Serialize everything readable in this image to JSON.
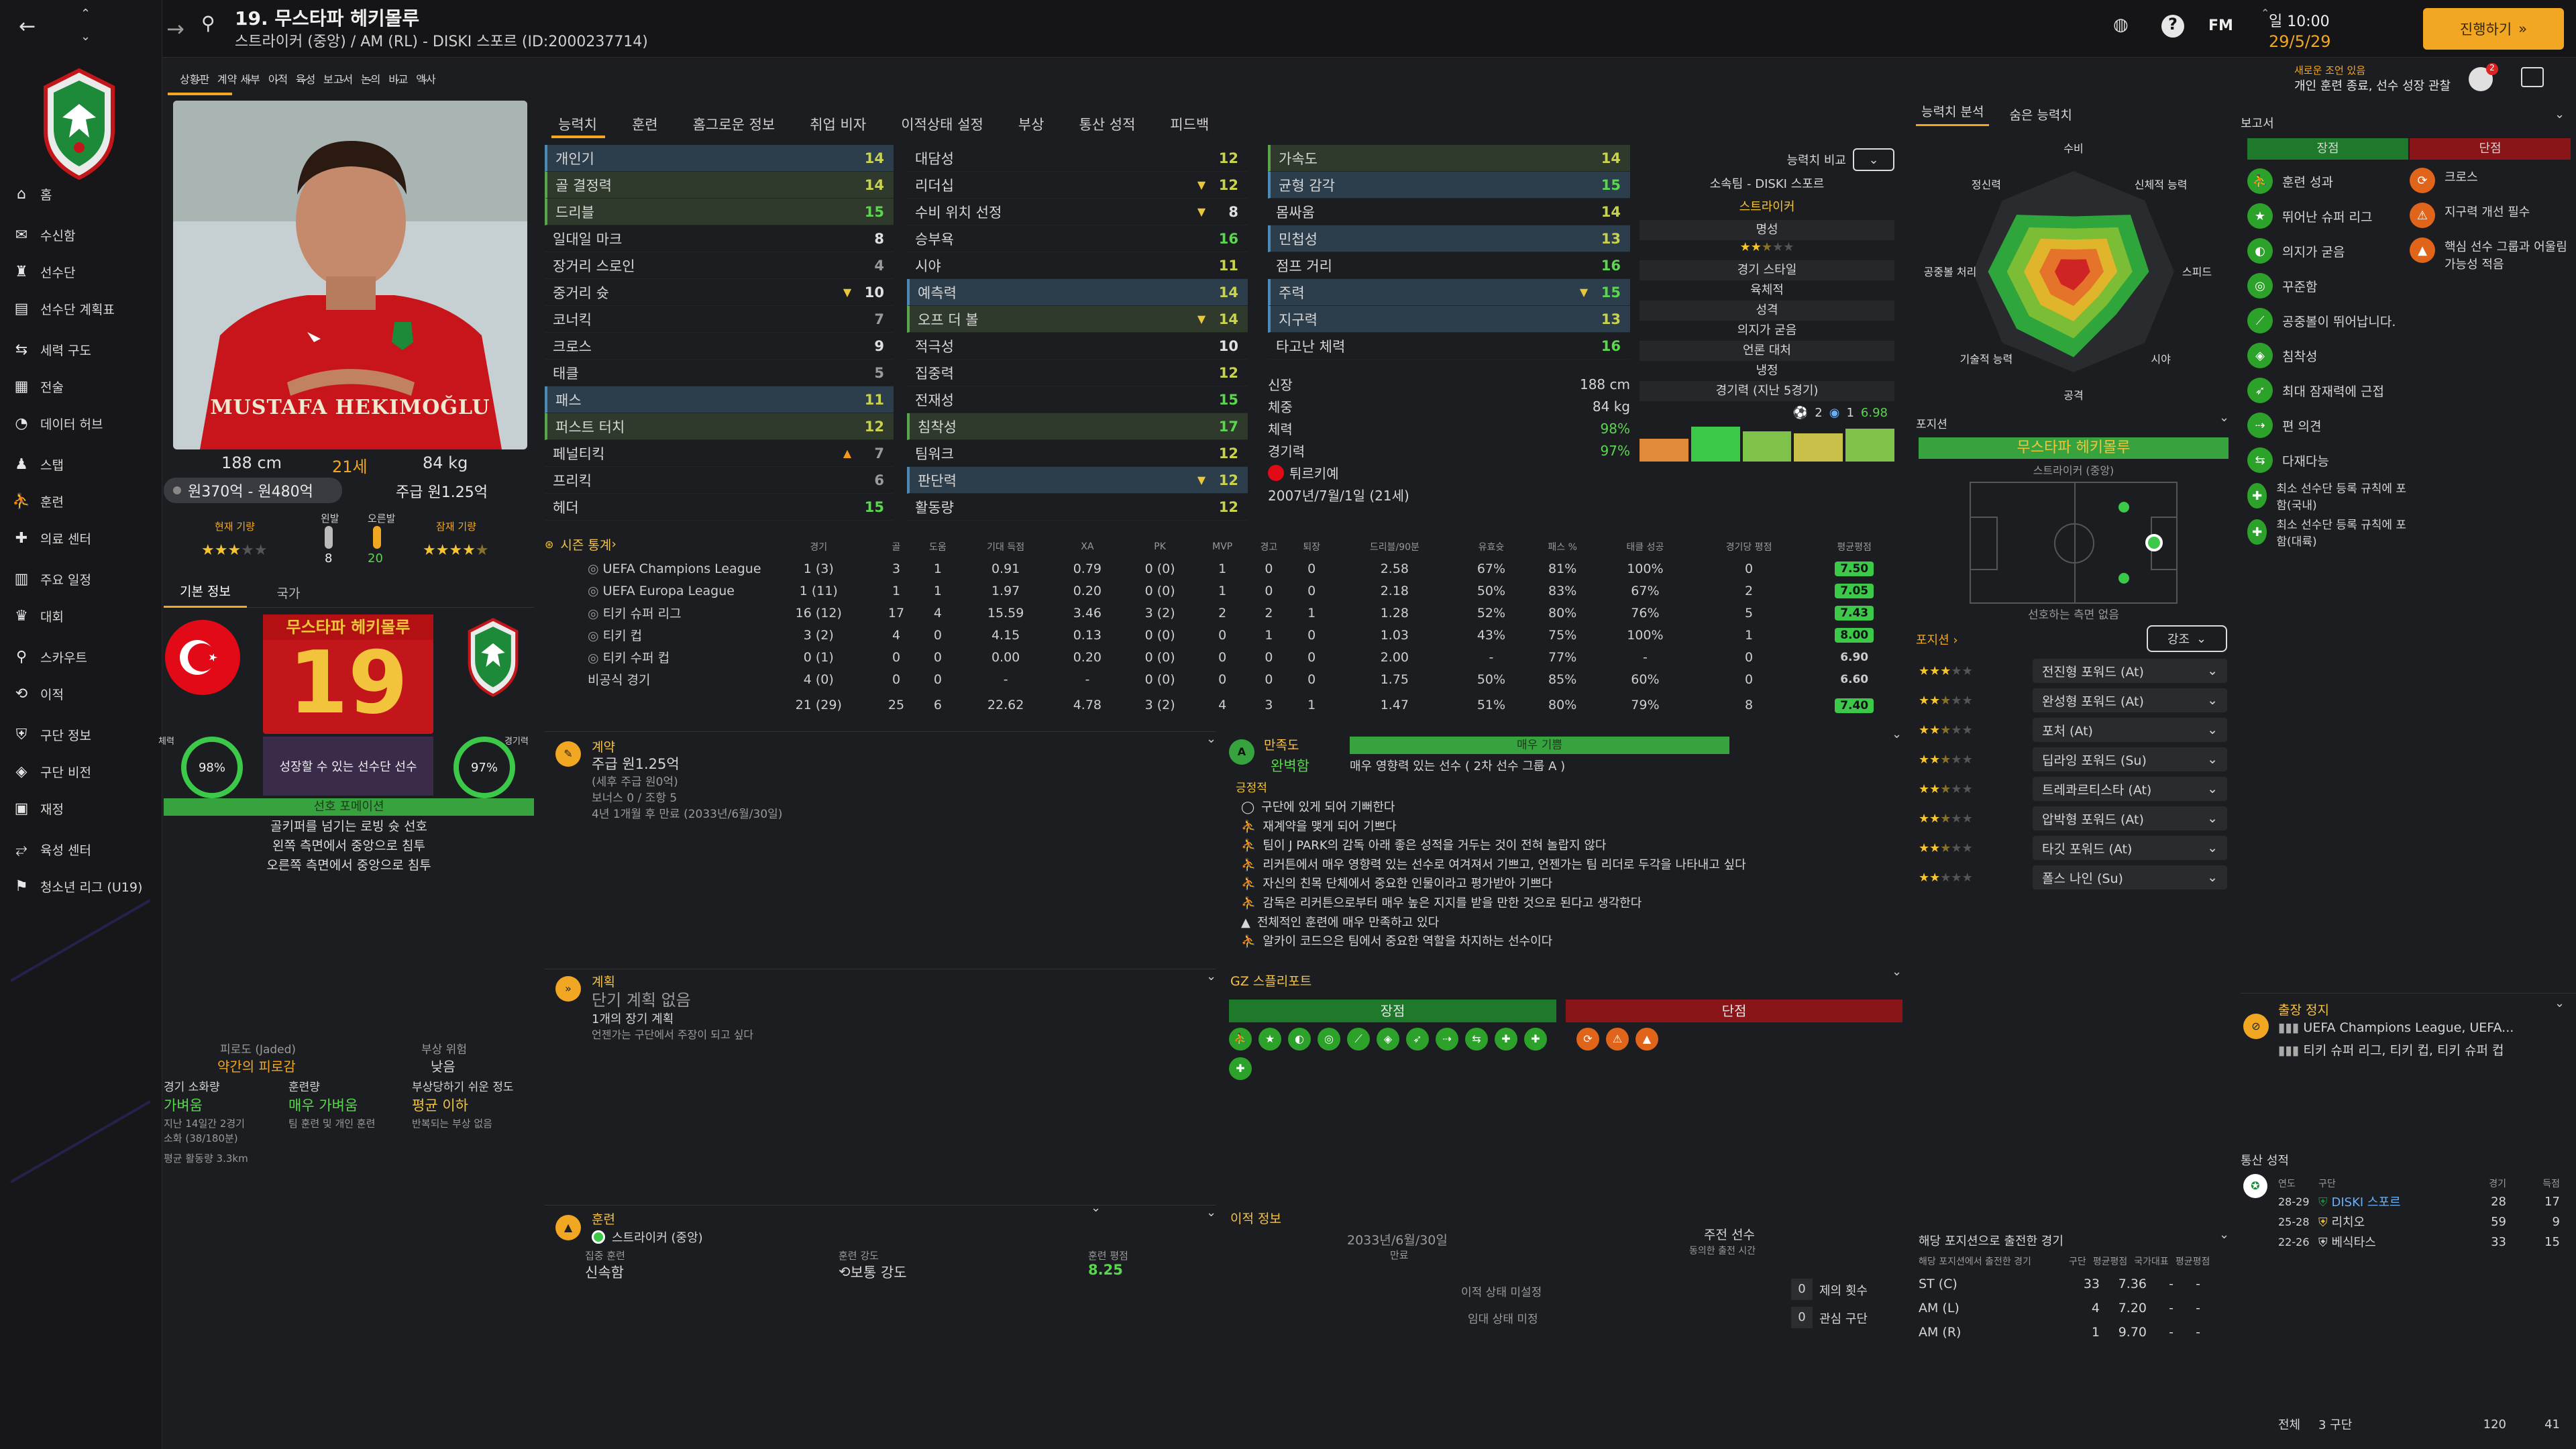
{
  "colors": {
    "accent": "#f2a722",
    "green": "#3cc94a",
    "red": "#c3161b"
  },
  "topbar": {
    "title": "19. 무스타파 헤키몰루",
    "subtitle": "스트라이커 (중앙) / AM (RL) - DISKI 스포르 (ID:2000237714)",
    "fm": "FM",
    "date_top": "일 10:00",
    "date_bottom": "29/5/29",
    "continue": "진행하기",
    "notice_title": "새로운 조언 있음",
    "notice_text": "개인 훈련 종료, 선수 성장 관찰"
  },
  "subnav": [
    "상황판",
    "계약 세부",
    "이적",
    "육성",
    "보고서",
    "논의",
    "비교",
    "액사"
  ],
  "sidebar": [
    {
      "icon": "home-icon",
      "label": "홈"
    },
    {
      "icon": "inbox-icon",
      "label": "수신함"
    },
    {
      "icon": "squad-icon",
      "label": "선수단"
    },
    {
      "icon": "squad-plan-icon",
      "label": "선수단 계획표"
    },
    {
      "icon": "tactics-icon",
      "label": "세력 구도"
    },
    {
      "icon": "tactics-board-icon",
      "label": "전술"
    },
    {
      "icon": "data-icon",
      "label": "데이터 허브"
    },
    {
      "icon": "staff-icon",
      "label": "스탭"
    },
    {
      "icon": "training-icon",
      "label": "훈련"
    },
    {
      "icon": "medical-icon",
      "label": "의료 센터"
    },
    {
      "icon": "calendar-icon",
      "label": "주요 일정"
    },
    {
      "icon": "trophy-icon",
      "label": "대회"
    },
    {
      "icon": "scout-icon",
      "label": "스카우트"
    },
    {
      "icon": "transfer-icon",
      "label": "이적"
    },
    {
      "icon": "club-info-icon",
      "label": "구단 정보"
    },
    {
      "icon": "club-vision-icon",
      "label": "구단 비전"
    },
    {
      "icon": "finance-icon",
      "label": "재정"
    },
    {
      "icon": "dev-centre-icon",
      "label": "육성 센터"
    },
    {
      "icon": "youth-icon",
      "label": "청소년 리그 (U19)"
    }
  ],
  "profile": {
    "kit_name": "MUSTAFA HEKIMOĞLU",
    "height": "188 cm",
    "age": "21세",
    "weight": "84 kg",
    "value": "원370억 - 원480억",
    "wage": "주급 원1.25억",
    "current_ability": "현재 기량",
    "current_stars": 3,
    "left_foot": "왼발",
    "left_val": "8",
    "right_foot": "오른발",
    "right_val": "20",
    "potential": "잠재 기량",
    "potential_stars": 4.5,
    "tab_basic": "기본 정보",
    "tab_nation": "국가",
    "name_card": "무스타파 헤키몰루",
    "number": "19",
    "fitness_label": "체력",
    "fitness": "98%",
    "match_sharp_label": "경기력",
    "match_sharp": "97%",
    "role_text": "성장할 수 있는 선수단 선수",
    "status_bar": "선호 포메이션",
    "traits": [
      "골키퍼를 넘기는 로빙 슛 선호",
      "왼쪽 측면에서 중앙으로 침투",
      "오른쪽 측면에서 중앙으로 침투"
    ],
    "fatigue_label": "피로도 (Jaded)",
    "fatigue_value": "약간의 피로감",
    "injury_label": "부상 위험",
    "injury_value": "낮음",
    "load_label": "경기 소화량",
    "load_value": "가벼움",
    "train_load_label": "훈련량",
    "train_load_value": "매우 가벼움",
    "proneness_label": "부상당하기 쉬운 정도",
    "proneness_value": "평균 이하",
    "load_note1": "지난 14일간 2경기",
    "load_note2": "소화 (38/180분)",
    "train_note": "팀 훈련 및 개인 훈련",
    "prone_note": "반복되는 부상 없음",
    "distance": "평균 활동량 3.3km"
  },
  "tabs": [
    "능력치",
    "훈련",
    "홈그로운 정보",
    "취업 비자",
    "이적상태 설정",
    "부상",
    "통산 성적",
    "피드백"
  ],
  "technical": [
    {
      "n": "개인기",
      "v": 14,
      "hl": 1
    },
    {
      "n": "골 결정력",
      "v": 14,
      "hl": 2
    },
    {
      "n": "드리블",
      "v": 15,
      "hl": 2
    },
    {
      "n": "일대일 마크",
      "v": 8
    },
    {
      "n": "장거리 스로인",
      "v": 4
    },
    {
      "n": "중거리 슛",
      "v": 10,
      "a": "down"
    },
    {
      "n": "코너킥",
      "v": 7
    },
    {
      "n": "크로스",
      "v": 9
    },
    {
      "n": "태클",
      "v": 5
    },
    {
      "n": "패스",
      "v": 11,
      "hl": 1
    },
    {
      "n": "퍼스트 터치",
      "v": 12,
      "hl": 2
    },
    {
      "n": "페널티킥",
      "v": 7,
      "a": "up"
    },
    {
      "n": "프리킥",
      "v": 6
    },
    {
      "n": "헤더",
      "v": 15
    }
  ],
  "mental": [
    {
      "n": "대담성",
      "v": 12
    },
    {
      "n": "리더십",
      "v": 12,
      "a": "down"
    },
    {
      "n": "수비 위치 선정",
      "v": 8,
      "a": "down"
    },
    {
      "n": "승부욕",
      "v": 16
    },
    {
      "n": "시야",
      "v": 11
    },
    {
      "n": "예측력",
      "v": 14,
      "hl": 1
    },
    {
      "n": "오프 더 볼",
      "v": 14,
      "hl": 2,
      "a": "down"
    },
    {
      "n": "적극성",
      "v": 10
    },
    {
      "n": "집중력",
      "v": 12
    },
    {
      "n": "전재성",
      "v": 15
    },
    {
      "n": "침착성",
      "v": 17,
      "hl": 2
    },
    {
      "n": "팀워크",
      "v": 12
    },
    {
      "n": "판단력",
      "v": 12,
      "hl": 1,
      "a": "down"
    },
    {
      "n": "활동량",
      "v": 12
    }
  ],
  "physical": [
    {
      "n": "가속도",
      "v": 14,
      "hl": 2
    },
    {
      "n": "균형 감각",
      "v": 15,
      "hl": 1
    },
    {
      "n": "몸싸움",
      "v": 14
    },
    {
      "n": "민첩성",
      "v": 13,
      "hl": 1
    },
    {
      "n": "점프 거리",
      "v": 16
    },
    {
      "n": "주력",
      "v": 15,
      "hl": 1,
      "a": "down"
    },
    {
      "n": "지구력",
      "v": 13,
      "hl": 1
    },
    {
      "n": "타고난 체력",
      "v": 16
    }
  ],
  "bio": {
    "height_label": "신장",
    "height": "188 cm",
    "weight_label": "체중",
    "weight": "84 kg",
    "fitness_label": "체력",
    "fitness": "98%",
    "sharp_label": "경기력",
    "sharp": "97%",
    "nation": "튀르키예",
    "dob": "2007년/7월/1일 (21세)"
  },
  "compare": {
    "label": "능력치 비교",
    "club": "소속팀 - DISKI 스포르",
    "position": "스트라이커",
    "rep_label": "명성",
    "style_label": "경기 스타일",
    "style": "육체적",
    "persona_label": "성격",
    "persona": "의지가 굳음",
    "media_label": "언론 대처",
    "media": "냉정",
    "form_label": "경기력 (지난 5경기)",
    "goals": "2",
    "assists": "1",
    "avg": "6.98",
    "form": [
      0.4,
      0.9,
      0.7,
      0.6,
      0.8
    ]
  },
  "stats": {
    "title": "시즌 통계",
    "headers": [
      "경기",
      "골",
      "도움",
      "기대 득점",
      "XA",
      "PK",
      "MVP",
      "경고",
      "퇴장",
      "드리블/90분",
      "유효슛",
      "패스 %",
      "태클 성공",
      "경기당 평점",
      "평균평점"
    ],
    "rows": [
      {
        "comp": "UEFA Champions League",
        "vals": [
          "1 (3)",
          "3",
          "1",
          "0.91",
          "0.79",
          "0 (0)",
          "1",
          "0",
          "0",
          "2.58",
          "67%",
          "81%",
          "100%",
          "0"
        ],
        "r": "7.50",
        "rc": "#3cc94a"
      },
      {
        "comp": "UEFA Europa League",
        "vals": [
          "1 (11)",
          "1",
          "1",
          "1.97",
          "0.20",
          "0 (0)",
          "1",
          "0",
          "0",
          "2.18",
          "50%",
          "83%",
          "67%",
          "2"
        ],
        "r": "7.05",
        "rc": "#3cc94a"
      },
      {
        "comp": "티키 슈퍼 리그",
        "vals": [
          "16 (12)",
          "17",
          "4",
          "15.59",
          "3.46",
          "3 (2)",
          "2",
          "2",
          "1",
          "1.28",
          "52%",
          "80%",
          "76%",
          "5"
        ],
        "r": "7.43",
        "rc": "#3cc94a"
      },
      {
        "comp": "티키 컵",
        "vals": [
          "3 (2)",
          "4",
          "0",
          "4.15",
          "0.13",
          "0 (0)",
          "0",
          "1",
          "0",
          "1.03",
          "43%",
          "75%",
          "100%",
          "1"
        ],
        "r": "8.00",
        "rc": "#3cc94a"
      },
      {
        "comp": "티키 수퍼 컵",
        "vals": [
          "0 (1)",
          "0",
          "0",
          "0.00",
          "0.20",
          "0 (0)",
          "0",
          "0",
          "0",
          "2.00",
          "-",
          "77%",
          "-",
          "0"
        ],
        "r": "6.90",
        "rc": ""
      },
      {
        "comp": "비공식 경기",
        "vals": [
          "4 (0)",
          "0",
          "0",
          "-",
          "-",
          "0 (0)",
          "0",
          "0",
          "0",
          "1.75",
          "50%",
          "85%",
          "60%",
          "0"
        ],
        "r": "6.60",
        "rc": ""
      }
    ],
    "total": [
      "21 (29)",
      "25",
      "6",
      "22.62",
      "4.78",
      "3 (2)",
      "4",
      "3",
      "1",
      "1.47",
      "51%",
      "80%",
      "79%",
      "8"
    ],
    "total_r": "7.40"
  },
  "contract": {
    "title": "계약",
    "wage": "주급 원1.25억",
    "note1": "(세후 주급 원0억)",
    "note2": "보너스 0 / 조항 5",
    "expiry": "4년 1개월 후 만료 (2033년/6월/30일)"
  },
  "plan": {
    "title": "계획",
    "short": "단기 계획 없음",
    "long": "1개의 장기 계획",
    "long_note": "언젠가는 구단에서 주장이 되고 싶다"
  },
  "happiness": {
    "label": "만족도",
    "value": "완벽함",
    "bar": "매우 기쁨",
    "desc": "매우 영향력 있는 선수 ( 2차 선수 그룹 A )",
    "positive": "긍정적",
    "items": [
      "구단에 있게 되어 기뻐한다",
      "재계약을 맺게 되어 기쁘다",
      "팀이 J PARK의 감독 아래 좋은 성적을 거두는 것이 전혀 놀랍지 않다",
      "리커튼에서 매우 영향력 있는 선수로 여겨져서 기쁘고, 언젠가는 팀 리더로 두각을 나타내고 싶다",
      "자신의 친목 단체에서 중요한 인물이라고 평가받아 기쁘다",
      "감독은 리커튼으로부터 매우 높은 지지를 받을 만한 것으로 된다고 생각한다",
      "전체적인 훈련에 매우 만족하고 있다",
      "알카이 코드으은 팀에서 중요한 역할을 차지하는 선수이다"
    ]
  },
  "gz": {
    "title": "GZ 스플리포트",
    "pro": "장점",
    "con": "단점",
    "pro_icons": 12,
    "con_icons": 3
  },
  "training": {
    "title": "훈련",
    "role": "스트라이커 (중앙)",
    "focus_label": "집중 훈련",
    "focus": "신속함",
    "intensity_label": "훈련 강도",
    "intensity": "보통 강도",
    "rating_label": "훈련 평점",
    "rating": "8.25"
  },
  "transfer": {
    "title": "이적 정보",
    "date": "2033년/6월/30일",
    "date_label": "만료",
    "pref_label": "주전 선수",
    "pref_note": "동의한 출전 시간",
    "status1": "이적 상태 미설정",
    "status2": "임대 상태 미정",
    "offers": "0",
    "offers_label": "제의 횟수",
    "interest": "0",
    "interest_label": "관심 구단"
  },
  "analysis": {
    "tab1": "능력치 분석",
    "tab2": "숨은 능력치",
    "labels": [
      "수비",
      "신체적 능력",
      "스피드",
      "시야",
      "공격",
      "기술적 능력",
      "공중볼 처리",
      "정신력"
    ],
    "values": [
      0.55,
      0.8,
      0.75,
      0.6,
      0.85,
      0.8,
      0.85,
      0.8
    ]
  },
  "position": {
    "title": "포지션",
    "player": "무스타파 헤키몰루",
    "role": "스트라이커 (중앙)",
    "foot_note": "선호하는 측면 없음",
    "pos_title": "포지션",
    "dropdown": "강조",
    "roles": [
      {
        "s": 3,
        "n": "전진형 포워드 (At)"
      },
      {
        "s": 2.5,
        "n": "완성형 포워드 (At)"
      },
      {
        "s": 2.5,
        "n": "포처 (At)"
      },
      {
        "s": 2.5,
        "n": "딥라잉 포워드 (Su)"
      },
      {
        "s": 2.5,
        "n": "트레콰르티스타 (At)"
      },
      {
        "s": 2.5,
        "n": "압박형 포워드 (At)"
      },
      {
        "s": 2.5,
        "n": "타깃 포워드 (At)"
      },
      {
        "s": 2,
        "n": "폴스 나인 (Su)"
      }
    ]
  },
  "apps_by_pos": {
    "title": "해당 포지션으로 출전한 경기",
    "sub": "해당 포지션에서 출전한 경기",
    "cols": [
      "구단",
      "평균평점",
      "국가대표",
      "평균평점"
    ],
    "rows": [
      {
        "p": "ST (C)",
        "a": "33",
        "r": "7.36"
      },
      {
        "p": "AM (L)",
        "a": "4",
        "r": "7.20"
      },
      {
        "p": "AM (R)",
        "a": "1",
        "r": "9.70"
      }
    ]
  },
  "report": {
    "title": "보고서",
    "pro": "장점",
    "con": "단점",
    "pros": [
      {
        "i": "training-icon",
        "t": "훈련 성과"
      },
      {
        "i": "star-icon",
        "t": "뛰어난 슈퍼 리그"
      },
      {
        "i": "mind-icon",
        "t": "의지가 굳음"
      },
      {
        "i": "target-icon",
        "t": "꾸준함"
      },
      {
        "i": "header-icon",
        "t": "공중볼이 뛰어납니다."
      },
      {
        "i": "composure-icon",
        "t": "침착성"
      },
      {
        "i": "peak-icon",
        "t": "최대 잠재력에 근접"
      },
      {
        "i": "foot-icon",
        "t": "편 의견"
      },
      {
        "i": "versatile-icon",
        "t": "다재다능"
      },
      {
        "i": "reg-icon",
        "t": "최소 선수단 등록 규칙에 포함(국내)"
      },
      {
        "i": "reg2-icon",
        "t": "최소 선수단 등록 규칙에 포함(대륙)"
      }
    ],
    "cons": [
      {
        "i": "cross-icon",
        "t": "크로스"
      },
      {
        "i": "improve-icon",
        "t": "지구력 개선 필수"
      },
      {
        "i": "group-icon",
        "t": "핵심 선수 그룹과 어울림 가능성 적음"
      }
    ]
  },
  "suspension": {
    "title": "출장 정지",
    "line1": "UEFA Champions League, UEFA...",
    "line2": "티키 슈퍼 리그, 티키 컵, 티키 슈퍼 컵"
  },
  "career": {
    "title": "통산 성적",
    "cols": [
      "연도",
      "구단",
      "경기",
      "득점"
    ],
    "rows": [
      {
        "y": "28-29",
        "c": "DISKI 스포르",
        "a": "28",
        "g": "17"
      },
      {
        "y": "25-28",
        "c": "리치오",
        "a": "59",
        "g": "9"
      },
      {
        "y": "22-26",
        "c": "베식타스",
        "a": "33",
        "g": "15"
      }
    ],
    "total_label": "전체",
    "total_clubs": "3 구단",
    "total_apps": "120",
    "total_goals": "41"
  }
}
